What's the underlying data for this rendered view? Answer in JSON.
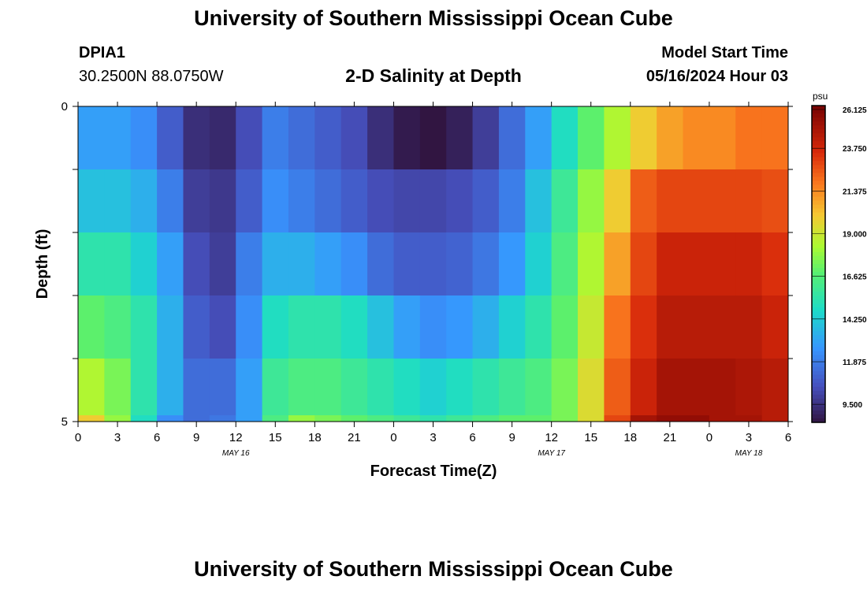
{
  "header": {
    "title": "University of Southern Mississippi Ocean Cube",
    "station": "DPIA1",
    "coords": "30.2500N  88.0750W",
    "subtitle": "2-D Salinity at Depth",
    "model_label": "Model Start Time",
    "model_time": "05/16/2024 Hour 03"
  },
  "footer": {
    "title": "University of Southern Mississippi Ocean Cube"
  },
  "chart_data": {
    "type": "heatmap",
    "xlabel": "Forecast Time(Z)",
    "ylabel": "Depth (ft)",
    "x_range_hours": [
      0,
      54
    ],
    "y_range_ft": [
      0,
      5
    ],
    "y_tick_labels": [
      "0",
      "5"
    ],
    "x_tick_labels": [
      "0",
      "3",
      "6",
      "9",
      "12",
      "15",
      "18",
      "21",
      "0",
      "3",
      "6",
      "9",
      "12",
      "15",
      "18",
      "21",
      "0",
      "3",
      "6"
    ],
    "date_labels": [
      "MAY 16",
      "MAY 17",
      "MAY 18"
    ],
    "colorbar": {
      "unit": "psu",
      "min": 8.5,
      "max": 26.125,
      "ticks": [
        26.125,
        23.75,
        21.375,
        19.0,
        16.625,
        14.25,
        11.875,
        9.5
      ],
      "tick_labels": [
        "26.125",
        "23.750",
        "21.375",
        "19.000",
        "16.625",
        "14.250",
        "11.875",
        "9.500"
      ]
    },
    "x_hours": [
      0,
      2,
      4,
      6,
      8,
      10,
      12,
      14,
      16,
      18,
      20,
      22,
      24,
      26,
      28,
      30,
      32,
      34,
      36,
      38,
      40,
      42,
      44,
      46,
      48,
      50,
      52,
      54
    ],
    "layer_depths_ft": [
      0.5,
      1.5,
      2.5,
      3.5,
      4.5,
      5.0
    ],
    "salinity": [
      [
        13.0,
        13.0,
        12.5,
        11.0,
        9.5,
        9.3,
        10.5,
        12.0,
        11.5,
        11.0,
        10.5,
        9.5,
        8.8,
        8.6,
        9.0,
        10.0,
        11.5,
        13.0,
        15.0,
        17.0,
        18.5,
        20.0,
        21.0,
        21.5,
        21.5,
        22.0,
        22.0,
        22.0
      ],
      [
        14.0,
        14.0,
        13.5,
        12.0,
        10.0,
        9.8,
        11.0,
        12.5,
        12.0,
        11.5,
        11.0,
        10.5,
        10.3,
        10.3,
        10.5,
        11.0,
        12.0,
        14.0,
        16.0,
        18.0,
        20.0,
        22.5,
        23.0,
        23.0,
        23.0,
        23.0,
        22.8,
        22.5
      ],
      [
        15.5,
        15.5,
        14.5,
        13.0,
        10.5,
        10.0,
        12.0,
        13.5,
        13.5,
        13.0,
        12.5,
        11.5,
        11.0,
        11.0,
        11.2,
        11.8,
        12.8,
        14.5,
        16.5,
        18.5,
        21.0,
        23.0,
        24.0,
        24.0,
        24.0,
        24.0,
        23.5,
        23.0
      ],
      [
        17.0,
        16.5,
        15.5,
        13.5,
        11.0,
        10.5,
        12.5,
        15.0,
        15.5,
        15.5,
        15.0,
        14.0,
        13.0,
        12.5,
        12.8,
        13.5,
        14.5,
        15.5,
        17.0,
        19.0,
        22.0,
        23.5,
        24.5,
        24.5,
        24.5,
        24.5,
        24.0,
        23.5
      ],
      [
        18.5,
        17.5,
        15.5,
        13.5,
        11.5,
        11.5,
        13.0,
        16.0,
        16.5,
        16.5,
        16.0,
        15.5,
        15.0,
        14.5,
        15.0,
        15.5,
        16.0,
        16.5,
        17.5,
        19.5,
        22.5,
        24.0,
        25.0,
        25.0,
        25.0,
        24.8,
        24.5,
        24.0
      ],
      [
        20.0,
        18.0,
        15.0,
        12.5,
        11.5,
        11.8,
        13.0,
        16.5,
        18.0,
        17.5,
        17.0,
        16.5,
        16.0,
        15.5,
        16.0,
        16.5,
        17.0,
        17.0,
        17.5,
        19.5,
        23.0,
        25.0,
        25.5,
        25.5,
        25.0,
        25.0,
        24.5,
        24.0
      ]
    ]
  }
}
